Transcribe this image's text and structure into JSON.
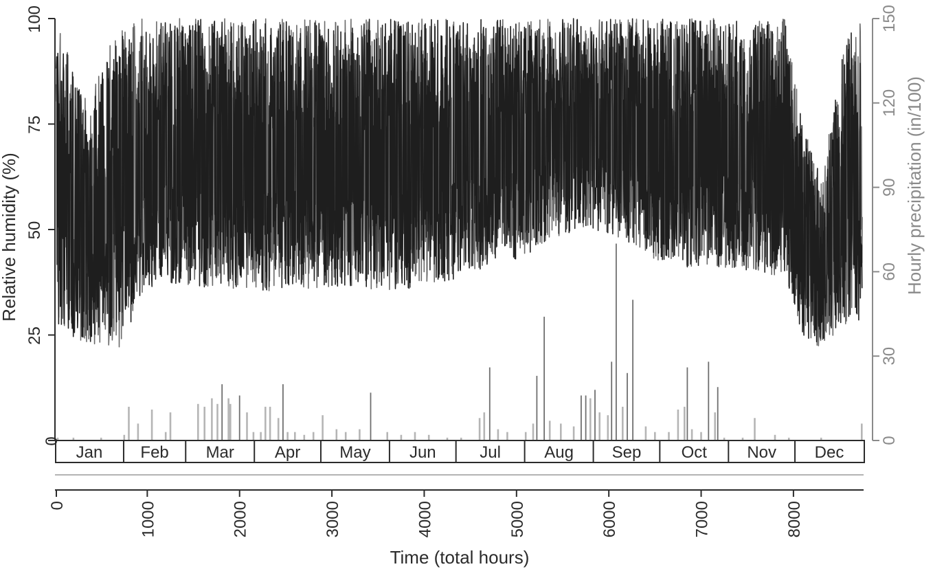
{
  "chart_data": {
    "type": "line",
    "title": "",
    "xlabel": "Time (total hours)",
    "ylabel_left": "Relative humidity (%)",
    "ylabel_right": "Hourly precipitation (in/100)",
    "xlim": [
      0,
      8760
    ],
    "ylim_left": [
      0,
      100
    ],
    "ylim_right": [
      0,
      150
    ],
    "x_ticks": [
      "0",
      "1000",
      "2000",
      "3000",
      "4000",
      "5000",
      "6000",
      "7000",
      "8000"
    ],
    "y_left_ticks": [
      "0",
      "25",
      "50",
      "75",
      "100"
    ],
    "y_right_ticks": [
      "0",
      "30",
      "60",
      "90",
      "120",
      "150"
    ],
    "months": [
      "Jan",
      "Feb",
      "Mar",
      "Apr",
      "May",
      "Jun",
      "Jul",
      "Aug",
      "Sep",
      "Oct",
      "Nov",
      "Dec"
    ],
    "grid": false,
    "series": [
      {
        "axis": "left",
        "color": "#1e1e1e",
        "style": "hourly band",
        "monthly_envelope": {
          "hour": [
            15,
            360,
            700,
            1100,
            1450,
            1800,
            2160,
            2520,
            2880,
            3240,
            3600,
            3960,
            4320,
            4680,
            5040,
            5400,
            5760,
            6120,
            6480,
            6840,
            7200,
            7560,
            7920,
            8100,
            8300,
            8550,
            8745
          ],
          "min": [
            22,
            20,
            18,
            35,
            33,
            33,
            32,
            32,
            33,
            33,
            32,
            33,
            35,
            38,
            40,
            45,
            48,
            45,
            40,
            38,
            38,
            37,
            35,
            22,
            19,
            24,
            25
          ],
          "max": [
            100,
            80,
            100,
            100,
            100,
            100,
            100,
            100,
            100,
            100,
            100,
            100,
            100,
            100,
            100,
            100,
            100,
            100,
            100,
            100,
            100,
            100,
            100,
            75,
            62,
            95,
            100
          ]
        }
      },
      {
        "axis": "right",
        "color": "#b5b5b5",
        "style": "hourly spikes",
        "hour": [
          30,
          200,
          500,
          750,
          800,
          900,
          1050,
          1200,
          1250,
          1550,
          1620,
          1700,
          1760,
          1810,
          1880,
          1900,
          2000,
          2080,
          2150,
          2230,
          2280,
          2330,
          2420,
          2470,
          2520,
          2600,
          2700,
          2800,
          2900,
          3050,
          3150,
          3300,
          3420,
          3600,
          3750,
          3900,
          4050,
          4250,
          4400,
          4600,
          4650,
          4710,
          4800,
          4900,
          5100,
          5180,
          5220,
          5300,
          5360,
          5480,
          5620,
          5700,
          5750,
          5800,
          5850,
          5900,
          5990,
          6030,
          6080,
          6150,
          6200,
          6260,
          6400,
          6500,
          6650,
          6750,
          6820,
          6850,
          6900,
          7000,
          7080,
          7150,
          7180,
          7250,
          7450,
          7580,
          7800,
          7950,
          8300,
          8740
        ],
        "value": [
          1,
          1,
          1,
          2,
          12,
          6,
          11,
          3,
          10,
          13,
          12,
          15,
          13,
          20,
          15,
          13,
          16,
          10,
          3,
          3,
          12,
          12,
          8,
          20,
          3,
          3,
          2,
          3,
          9,
          4,
          3,
          4,
          17,
          3,
          2,
          3,
          2,
          1,
          1,
          8,
          10,
          26,
          4,
          3,
          3,
          6,
          23,
          44,
          7,
          6,
          5,
          16,
          16,
          15,
          18,
          10,
          9,
          28,
          70,
          12,
          24,
          50,
          5,
          3,
          3,
          11,
          12,
          26,
          4,
          3,
          28,
          10,
          19,
          1,
          1,
          8,
          2,
          1,
          1,
          6
        ]
      }
    ]
  }
}
